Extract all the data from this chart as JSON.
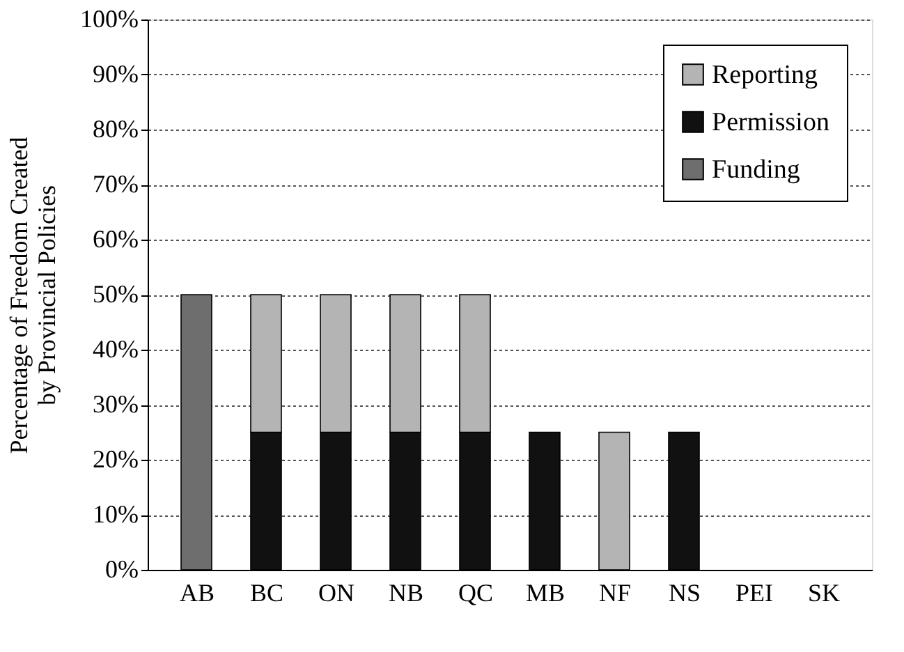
{
  "chart_data": {
    "type": "bar",
    "stacked": true,
    "ylabel": "Percentage of Freedom Created\nby Provincial Policies",
    "categories": [
      "AB",
      "BC",
      "ON",
      "NB",
      "QC",
      "MB",
      "NF",
      "NS",
      "PEI",
      "SK"
    ],
    "series": [
      {
        "name": "Funding",
        "color": "#6e6e6e",
        "values": [
          50,
          0,
          0,
          0,
          0,
          0,
          0,
          0,
          0,
          0
        ]
      },
      {
        "name": "Permission",
        "color": "#111111",
        "values": [
          0,
          25,
          25,
          25,
          25,
          25,
          0,
          25,
          0,
          0
        ]
      },
      {
        "name": "Reporting",
        "color": "#b4b4b4",
        "values": [
          0,
          25,
          25,
          25,
          25,
          0,
          25,
          0,
          0,
          0
        ]
      }
    ],
    "ylim": [
      0,
      100
    ],
    "yticks": [
      {
        "value": 0,
        "label": "0%"
      },
      {
        "value": 10,
        "label": "10%"
      },
      {
        "value": 20,
        "label": "20%"
      },
      {
        "value": 30,
        "label": "30%"
      },
      {
        "value": 40,
        "label": "40%"
      },
      {
        "value": 50,
        "label": "50%"
      },
      {
        "value": 60,
        "label": "60%"
      },
      {
        "value": 70,
        "label": "70%"
      },
      {
        "value": 80,
        "label": "80%"
      },
      {
        "value": 90,
        "label": "90%"
      },
      {
        "value": 100,
        "label": "100%"
      }
    ],
    "grid": "y",
    "legend": "top right"
  }
}
